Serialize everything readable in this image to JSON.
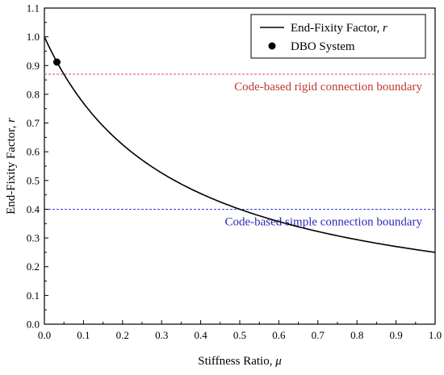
{
  "chart_data": {
    "type": "line",
    "title": "",
    "xlabel": "Stiffness Ratio, ",
    "xlabel_symbol": "μ",
    "ylabel": "End-Fixity Factor, ",
    "ylabel_symbol": "r",
    "xlim": [
      0.0,
      1.0
    ],
    "ylim": [
      0.0,
      1.1
    ],
    "x_ticks": [
      "0.0",
      "0.1",
      "0.2",
      "0.3",
      "0.4",
      "0.5",
      "0.6",
      "0.7",
      "0.8",
      "0.9",
      "1.0"
    ],
    "y_ticks": [
      "0.0",
      "0.1",
      "0.2",
      "0.3",
      "0.4",
      "0.5",
      "0.6",
      "0.7",
      "0.8",
      "0.9",
      "1.0",
      "1.1"
    ],
    "grid": false,
    "legend_position": "top-right",
    "series": [
      {
        "name": "End-Fixity Factor, ",
        "name_symbol": "r",
        "kind": "curve",
        "formula": "r = 1 / (1 + 3μ)",
        "color": "#000000",
        "x": [
          0.0,
          0.02,
          0.05,
          0.1,
          0.15,
          0.2,
          0.25,
          0.3,
          0.35,
          0.4,
          0.45,
          0.5,
          0.6,
          0.7,
          0.8,
          0.9,
          1.0
        ],
        "y": [
          1.0,
          0.943,
          0.87,
          0.769,
          0.69,
          0.625,
          0.571,
          0.526,
          0.488,
          0.455,
          0.426,
          0.4,
          0.357,
          0.323,
          0.294,
          0.27,
          0.25
        ]
      },
      {
        "name": "DBO System",
        "kind": "point",
        "color": "#000000",
        "x": [
          0.032
        ],
        "y": [
          0.912
        ]
      }
    ],
    "reference_lines": [
      {
        "y": 0.87,
        "label": "Code-based rigid connection boundary",
        "color": "#d9534f",
        "label_color": "#c0392b",
        "style": "dashed"
      },
      {
        "y": 0.4,
        "label": "Code-based simple connection boundary",
        "color": "#3b3bd6",
        "label_color": "#2a2ab8",
        "style": "dashed"
      }
    ]
  }
}
